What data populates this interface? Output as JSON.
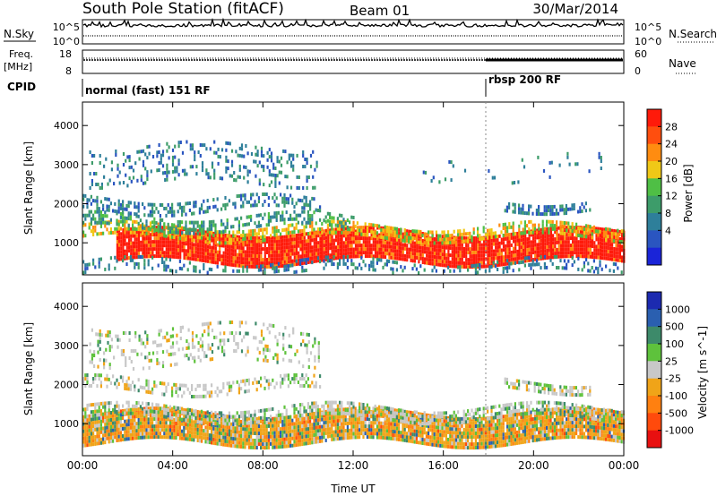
{
  "header": {
    "station": "South Pole Station (fitACF)",
    "beam": "Beam 01",
    "date": "30/Mar/2014"
  },
  "top_panels": {
    "nsky_label": "N.Sky",
    "nsearch_label": "N.Search",
    "nsky_ticks": [
      "10^5",
      "10^0"
    ],
    "nsearch_ticks": [
      "10^5",
      "10^0"
    ],
    "freq_label_top": "Freq.",
    "freq_label_unit": "[MHz]",
    "freq_ticks": [
      "18",
      "8"
    ],
    "nave_label": "Nave",
    "nave_ticks": [
      "60",
      "0"
    ],
    "cpid_label": "CPID",
    "cpid_segments": [
      {
        "start_hour": 0,
        "end_hour": 18,
        "text": "normal (fast) 151 RF"
      },
      {
        "start_hour": 18,
        "end_hour": 24,
        "text": "rbsp 200 RF"
      }
    ]
  },
  "chart_data": [
    {
      "type": "heatmap",
      "name": "power",
      "ylabel": "Slant Range [km]",
      "ylim": [
        180,
        4600
      ],
      "yticks": [
        1000,
        2000,
        3000,
        4000
      ],
      "xlim": [
        0,
        24
      ],
      "colorbar": {
        "label": "Power [dB]",
        "tick_values": [
          4,
          8,
          12,
          16,
          20,
          24,
          28
        ],
        "tick_labels": [
          "4",
          "8",
          "12",
          "16",
          "20",
          "24",
          "28"
        ],
        "range": [
          0,
          32
        ],
        "colors": [
          "#1a24d8",
          "#2a55c0",
          "#2e7f9a",
          "#3d9c6a",
          "#4fbf45",
          "#f0c817",
          "#ff8c10",
          "#ff4e0e",
          "#ff1a0a"
        ]
      },
      "bands": [
        {
          "range_start": 560,
          "range_end": 1300,
          "value": 28,
          "hours": [
            1.5,
            24
          ],
          "density": 0.95
        },
        {
          "range_start": 1150,
          "range_end": 1450,
          "value": 18,
          "hours": [
            0,
            24
          ],
          "density": 0.55
        },
        {
          "range_start": 1350,
          "range_end": 1700,
          "value": 10,
          "hours": [
            0,
            12
          ],
          "density": 0.4
        },
        {
          "range_start": 1850,
          "range_end": 2150,
          "value": 8,
          "hours": [
            0,
            10.5
          ],
          "density": 0.45
        },
        {
          "range_start": 1850,
          "range_end": 2100,
          "value": 6,
          "hours": [
            18.7,
            22.5
          ],
          "density": 0.6
        },
        {
          "range_start": 2500,
          "range_end": 3500,
          "value": 6,
          "hours": [
            0.3,
            10.5
          ],
          "density": 0.22
        },
        {
          "range_start": 2600,
          "range_end": 3200,
          "value": 6,
          "hours": [
            15,
            23
          ],
          "density": 0.06
        },
        {
          "range_start": 250,
          "range_end": 550,
          "value": 9,
          "hours": [
            0,
            24
          ],
          "density": 0.3
        }
      ]
    },
    {
      "type": "heatmap",
      "name": "velocity",
      "ylabel": "Slant Range [km]",
      "xlabel": "Time UT",
      "ylim": [
        180,
        4600
      ],
      "yticks": [
        1000,
        2000,
        3000,
        4000
      ],
      "xlim": [
        0,
        24
      ],
      "xticks": [
        0,
        4,
        8,
        12,
        16,
        20,
        24
      ],
      "xtick_labels": [
        "00:00",
        "04:00",
        "08:00",
        "12:00",
        "16:00",
        "20:00",
        "00:00"
      ],
      "colorbar": {
        "label": "Velocity [m s^-1]",
        "tick_labels": [
          "1000",
          "500",
          "100",
          "25",
          "-25",
          "-100",
          "-500",
          "-1000"
        ],
        "colors": [
          "#1c2ab0",
          "#2a5fb0",
          "#3d8a6a",
          "#5ec23c",
          "#c8c8c8",
          "#f0a418",
          "#ff8010",
          "#ff4a0c",
          "#e81010"
        ]
      },
      "bands": [
        {
          "range_start": 560,
          "range_end": 1300,
          "value": -100,
          "hours": [
            0,
            24
          ],
          "density": 0.95
        },
        {
          "range_start": 1150,
          "range_end": 1450,
          "value": 25,
          "hours": [
            0,
            24
          ],
          "density": 0.55
        },
        {
          "range_start": 1850,
          "range_end": 2150,
          "value": 0,
          "hours": [
            0,
            10.5
          ],
          "density": 0.45
        },
        {
          "range_start": 1850,
          "range_end": 2100,
          "value": 0,
          "hours": [
            18.7,
            22.5
          ],
          "density": 0.6
        },
        {
          "range_start": 2500,
          "range_end": 3500,
          "value": 0,
          "hours": [
            0.3,
            10.5
          ],
          "density": 0.22
        }
      ]
    }
  ]
}
